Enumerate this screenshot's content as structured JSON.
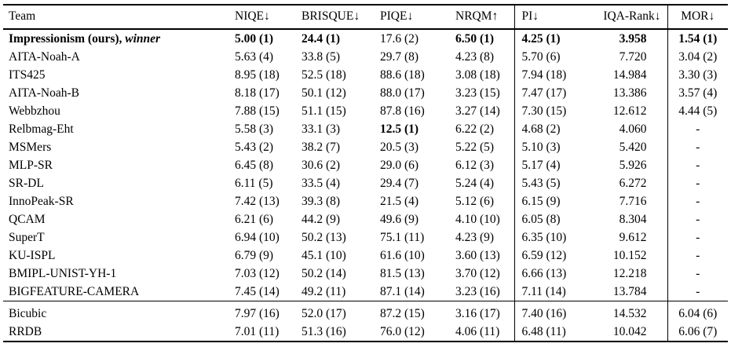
{
  "table": {
    "columns": [
      {
        "label": "Team"
      },
      {
        "label": "NIQE↓"
      },
      {
        "label": "BRISQUE↓"
      },
      {
        "label": "PIQE↓"
      },
      {
        "label": "NRQM↑"
      },
      {
        "label": "PI↓"
      },
      {
        "label": "IQA-Rank↓"
      },
      {
        "label": "MOR↓"
      }
    ],
    "groups": [
      {
        "rows": [
          {
            "team": "Impressionism (ours), ",
            "team_italic": "winner",
            "team_bold": true,
            "cells": [
              "5.00 (1)",
              "24.4 (1)",
              "17.6 (2)",
              "6.50 (1)",
              "4.25 (1)",
              "3.958",
              "1.54 (1)"
            ],
            "bold_cells": [
              0,
              1,
              3,
              4,
              5,
              6
            ]
          },
          {
            "team": "AITA-Noah-A",
            "cells": [
              "5.63 (4)",
              "33.8 (5)",
              "29.7 (8)",
              "4.23 (8)",
              "5.70 (6)",
              "7.720",
              "3.04 (2)"
            ]
          },
          {
            "team": "ITS425",
            "cells": [
              "8.95 (18)",
              "52.5 (18)",
              "88.6 (18)",
              "3.08 (18)",
              "7.94 (18)",
              "14.984",
              "3.30 (3)"
            ]
          },
          {
            "team": "AITA-Noah-B",
            "cells": [
              "8.18 (17)",
              "50.1 (12)",
              "88.0 (17)",
              "3.23 (15)",
              "7.47 (17)",
              "13.386",
              "3.57 (4)"
            ]
          },
          {
            "team": "Webbzhou",
            "cells": [
              "7.88 (15)",
              "51.1 (15)",
              "87.8 (16)",
              "3.27 (14)",
              "7.30 (15)",
              "12.612",
              "4.44 (5)"
            ]
          },
          {
            "team": "Relbmag-Eht",
            "cells": [
              "5.58 (3)",
              "33.1 (3)",
              "12.5 (1)",
              "6.22 (2)",
              "4.68 (2)",
              "4.060",
              "-"
            ],
            "bold_cells": [
              2
            ]
          },
          {
            "team": "MSMers",
            "cells": [
              "5.43 (2)",
              "38.2 (7)",
              "20.5 (3)",
              "5.22 (5)",
              "5.10 (3)",
              "5.420",
              "-"
            ]
          },
          {
            "team": "MLP-SR",
            "cells": [
              "6.45 (8)",
              "30.6 (2)",
              "29.0 (6)",
              "6.12 (3)",
              "5.17 (4)",
              "5.926",
              "-"
            ]
          },
          {
            "team": "SR-DL",
            "cells": [
              "6.11 (5)",
              "33.5 (4)",
              "29.4 (7)",
              "5.24 (4)",
              "5.43 (5)",
              "6.272",
              "-"
            ]
          },
          {
            "team": "InnoPeak-SR",
            "cells": [
              "7.42 (13)",
              "39.3 (8)",
              "21.5 (4)",
              "5.12 (6)",
              "6.15 (9)",
              "7.716",
              "-"
            ]
          },
          {
            "team": "QCAM",
            "cells": [
              "6.21 (6)",
              "44.2 (9)",
              "49.6 (9)",
              "4.10 (10)",
              "6.05 (8)",
              "8.304",
              "-"
            ]
          },
          {
            "team": "SuperT",
            "cells": [
              "6.94 (10)",
              "50.2 (13)",
              "75.1 (11)",
              "4.23 (9)",
              "6.35 (10)",
              "9.612",
              "-"
            ]
          },
          {
            "team": "KU-ISPL",
            "cells": [
              "6.79 (9)",
              "45.1 (10)",
              "61.6 (10)",
              "3.60 (13)",
              "6.59 (12)",
              "10.152",
              "-"
            ]
          },
          {
            "team": "BMIPL-UNIST-YH-1",
            "cells": [
              "7.03 (12)",
              "50.2 (14)",
              "81.5 (13)",
              "3.70 (12)",
              "6.66 (13)",
              "12.218",
              "-"
            ]
          },
          {
            "team": "BIGFEATURE-CAMERA",
            "cells": [
              "7.45 (14)",
              "49.2 (11)",
              "87.1 (14)",
              "3.23 (16)",
              "7.11 (14)",
              "13.784",
              "-"
            ]
          }
        ]
      },
      {
        "rows": [
          {
            "team": "Bicubic",
            "cells": [
              "7.97 (16)",
              "52.0 (17)",
              "87.2 (15)",
              "3.16 (17)",
              "7.40 (16)",
              "14.532",
              "6.04 (6)"
            ]
          },
          {
            "team": "RRDB",
            "cells": [
              "7.01 (11)",
              "51.3 (16)",
              "76.0 (12)",
              "4.06 (11)",
              "6.48 (11)",
              "10.042",
              "6.06 (7)"
            ]
          }
        ]
      }
    ]
  }
}
